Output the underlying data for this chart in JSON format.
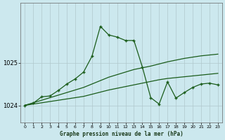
{
  "title": "Graphe pression niveau de la mer (hPa)",
  "background_color": "#cce8ee",
  "grid_color": "#b0c8cc",
  "line_color": "#1a5c1a",
  "yticks": [
    1024,
    1025
  ],
  "ylim": [
    1023.6,
    1026.4
  ],
  "xlim": [
    -0.5,
    23.5
  ],
  "xticks": [
    0,
    1,
    2,
    3,
    4,
    5,
    6,
    7,
    8,
    9,
    10,
    11,
    12,
    13,
    14,
    15,
    16,
    17,
    18,
    19,
    20,
    21,
    22,
    23
  ],
  "y_main": [
    1024.0,
    1024.05,
    1024.2,
    1024.22,
    1024.35,
    1024.5,
    1024.62,
    1024.78,
    1025.15,
    1025.85,
    1025.65,
    1025.6,
    1025.52,
    1025.52,
    1024.9,
    1024.18,
    1024.03,
    1024.55,
    1024.17,
    1024.3,
    1024.42,
    1024.5,
    1024.52,
    1024.48
  ],
  "y_upper": [
    1024.0,
    1024.06,
    1024.12,
    1024.18,
    1024.24,
    1024.3,
    1024.36,
    1024.42,
    1024.5,
    1024.58,
    1024.66,
    1024.72,
    1024.78,
    1024.84,
    1024.88,
    1024.92,
    1024.97,
    1025.02,
    1025.06,
    1025.1,
    1025.13,
    1025.16,
    1025.18,
    1025.2
  ],
  "y_lower": [
    1024.0,
    1024.03,
    1024.06,
    1024.09,
    1024.12,
    1024.15,
    1024.18,
    1024.21,
    1024.26,
    1024.31,
    1024.36,
    1024.4,
    1024.44,
    1024.48,
    1024.52,
    1024.56,
    1024.6,
    1024.63,
    1024.65,
    1024.67,
    1024.69,
    1024.71,
    1024.73,
    1024.75
  ]
}
